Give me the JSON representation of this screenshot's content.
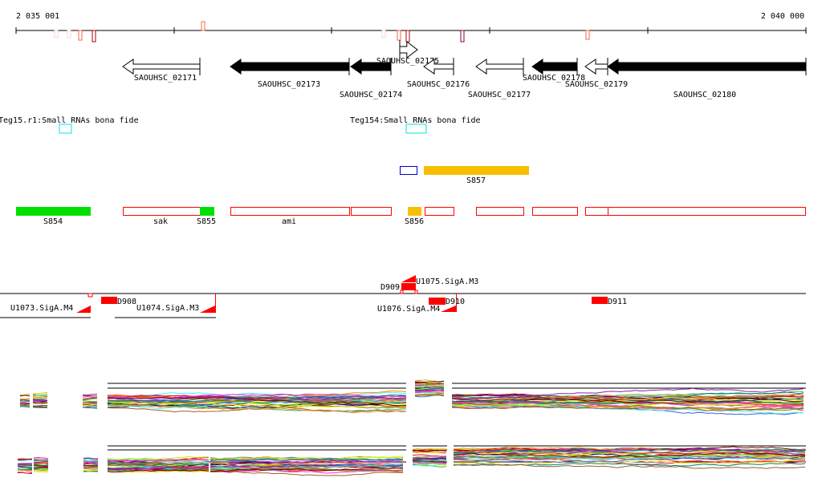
{
  "ruler": {
    "start": "2 035 001",
    "end": "2 040 000"
  },
  "genes": [
    "SAOUHSC_02171",
    "SAOUHSC_02173",
    "SAOUHSC_02174",
    "SAOUHSC_02175",
    "SAOUHSC_02176",
    "SAOUHSC_02177",
    "SAOUHSC_02178",
    "SAOUHSC_02179",
    "SAOUHSC_02180"
  ],
  "small_rnas": [
    "Teg15.r1:Small RNAs bona fide",
    "Teg154:Small RNAs bona fide"
  ],
  "features": {
    "s857": "S857",
    "s854": "S854",
    "sak": "sak",
    "s855": "S855",
    "ami": "ami",
    "s856": "S856"
  },
  "regulatory": {
    "d909": "D909",
    "u1075": "U1075.SigA.M3",
    "u1073": "U1073.SigA.M4",
    "d908": "D908",
    "u1074": "U1074.SigA.M3",
    "u1076": "U1076.SigA.M4",
    "d910": "D910",
    "d911": "D911"
  },
  "colors": {
    "gene_filled": "#000000",
    "srna": "#00e5ee",
    "orange": "#f5c000",
    "green": "#00e000",
    "red": "#ff0000",
    "blue": "#0000cc"
  }
}
